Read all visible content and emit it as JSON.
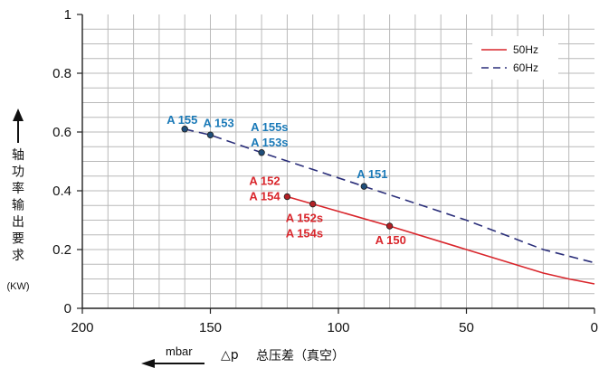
{
  "chart_data": {
    "type": "line",
    "x_reversed": true,
    "xlim": [
      0,
      200
    ],
    "ylim": [
      0,
      1
    ],
    "x_ticks": [
      200,
      150,
      100,
      50,
      0
    ],
    "y_ticks": [
      0,
      0.2,
      0.4,
      0.6,
      0.8,
      1
    ],
    "x_tick_labels": [
      "200",
      "150",
      "100",
      "50",
      "0"
    ],
    "y_tick_labels": [
      "0",
      "0.2",
      "0.4",
      "0.6",
      "0.8",
      "1"
    ],
    "grid": true,
    "legend_placement": "top-right",
    "ylabel_chars": [
      "轴",
      "功",
      "率",
      "输",
      "出",
      "要",
      "求"
    ],
    "ylabel_unit": "(KW)",
    "xlabel_unit": "mbar",
    "xlabel_delta": "△p",
    "xlabel": "总压差（真空）",
    "colors": {
      "s50": "#d9262c",
      "s60": "#2b2f7a",
      "pt60": "#1b7ab8",
      "pt50": "#d9262c",
      "grid": "#b9b9b9"
    },
    "series": [
      {
        "name": "50Hz",
        "style": "solid",
        "points": [
          [
            120,
            0.38
          ],
          [
            110,
            0.355
          ],
          [
            80,
            0.28
          ],
          [
            50,
            0.2
          ],
          [
            20,
            0.12
          ],
          [
            10,
            0.1
          ],
          [
            0,
            0.083
          ]
        ]
      },
      {
        "name": "60Hz",
        "style": "dashed",
        "points": [
          [
            160,
            0.61
          ],
          [
            150,
            0.59
          ],
          [
            130,
            0.53
          ],
          [
            90,
            0.415
          ],
          [
            50,
            0.3
          ],
          [
            20,
            0.2
          ],
          [
            0,
            0.155
          ]
        ]
      }
    ],
    "markers": [
      {
        "series": 1,
        "x": 160,
        "y": 0.61,
        "labels": [
          "A 155"
        ],
        "anchor": "above-left"
      },
      {
        "series": 1,
        "x": 150,
        "y": 0.59,
        "labels": [
          "A 153"
        ],
        "anchor": "above-right"
      },
      {
        "series": 1,
        "x": 130,
        "y": 0.53,
        "labels": [
          "A 155s",
          "A 153s"
        ],
        "anchor": "above-2"
      },
      {
        "series": 1,
        "x": 90,
        "y": 0.415,
        "labels": [
          "A 151"
        ],
        "anchor": "above-right"
      },
      {
        "series": 0,
        "x": 120,
        "y": 0.38,
        "labels": [
          "A 152",
          "A 154"
        ],
        "anchor": "left-2"
      },
      {
        "series": 0,
        "x": 110,
        "y": 0.355,
        "labels": [
          "A 152s",
          "A 154s"
        ],
        "anchor": "below-2"
      },
      {
        "series": 0,
        "x": 80,
        "y": 0.28,
        "labels": [
          "A 150"
        ],
        "anchor": "below"
      }
    ]
  }
}
